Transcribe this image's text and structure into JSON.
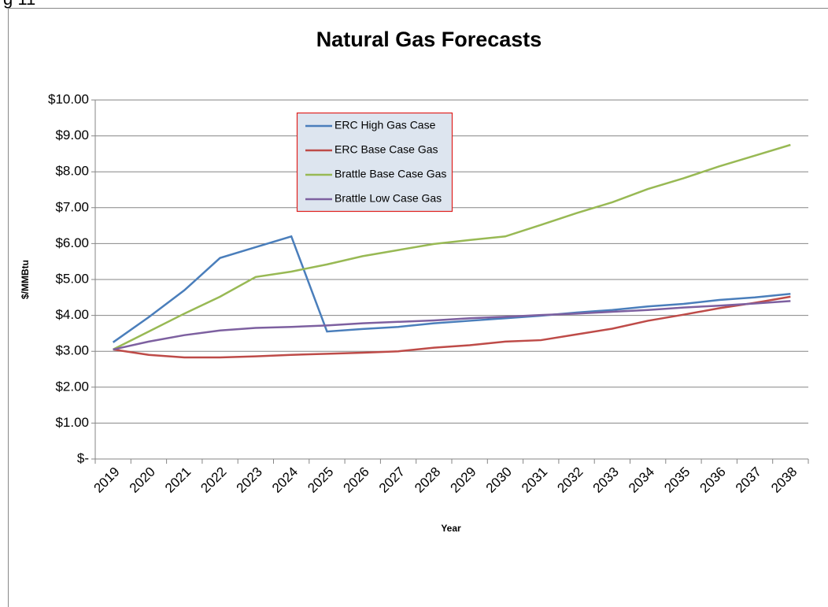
{
  "page_label": "g 11",
  "chart_data": {
    "type": "line",
    "title": "Natural Gas Forecasts",
    "x_label": "Year",
    "y_label": "$/MMBtu",
    "categories": [
      "2019",
      "2020",
      "2021",
      "2022",
      "2023",
      "2024",
      "2025",
      "2026",
      "2027",
      "2028",
      "2029",
      "2030",
      "2031",
      "2032",
      "2033",
      "2034",
      "2035",
      "2036",
      "2037",
      "2038"
    ],
    "series": [
      {
        "name": "ERC High Gas Case",
        "color": "#4a7ebb",
        "values": [
          3.25,
          3.95,
          4.7,
          5.6,
          5.9,
          6.2,
          3.55,
          3.62,
          3.68,
          3.78,
          3.85,
          3.92,
          3.99,
          4.08,
          4.15,
          4.25,
          4.32,
          4.43,
          4.5,
          4.6
        ]
      },
      {
        "name": "ERC Base Case Gas",
        "color": "#be4b48",
        "values": [
          3.05,
          2.9,
          2.83,
          2.83,
          2.86,
          2.9,
          2.93,
          2.96,
          3.0,
          3.1,
          3.17,
          3.27,
          3.31,
          3.47,
          3.63,
          3.85,
          4.02,
          4.2,
          4.35,
          4.52
        ]
      },
      {
        "name": "Brattle Base Case Gas",
        "color": "#98b954",
        "values": [
          3.05,
          3.55,
          4.05,
          4.52,
          5.07,
          5.22,
          5.42,
          5.65,
          5.82,
          5.99,
          6.1,
          6.2,
          6.52,
          6.85,
          7.15,
          7.52,
          7.82,
          8.15,
          8.45,
          8.75
        ]
      },
      {
        "name": "Brattle Low Case Gas",
        "color": "#7d60a0",
        "values": [
          3.05,
          3.27,
          3.45,
          3.58,
          3.65,
          3.68,
          3.72,
          3.78,
          3.82,
          3.86,
          3.92,
          3.96,
          4.01,
          4.05,
          4.1,
          4.15,
          4.22,
          4.27,
          4.33,
          4.4
        ]
      }
    ],
    "ylim": [
      0,
      10
    ],
    "yticks": [
      {
        "value": 0,
        "label": "$-"
      },
      {
        "value": 1,
        "label": "$1.00"
      },
      {
        "value": 2,
        "label": "$2.00"
      },
      {
        "value": 3,
        "label": "$3.00"
      },
      {
        "value": 4,
        "label": "$4.00"
      },
      {
        "value": 5,
        "label": "$5.00"
      },
      {
        "value": 6,
        "label": "$6.00"
      },
      {
        "value": 7,
        "label": "$7.00"
      },
      {
        "value": 8,
        "label": "$8.00"
      },
      {
        "value": 9,
        "label": "$9.00"
      },
      {
        "value": 10,
        "label": "$10.00"
      }
    ],
    "grid": true
  }
}
